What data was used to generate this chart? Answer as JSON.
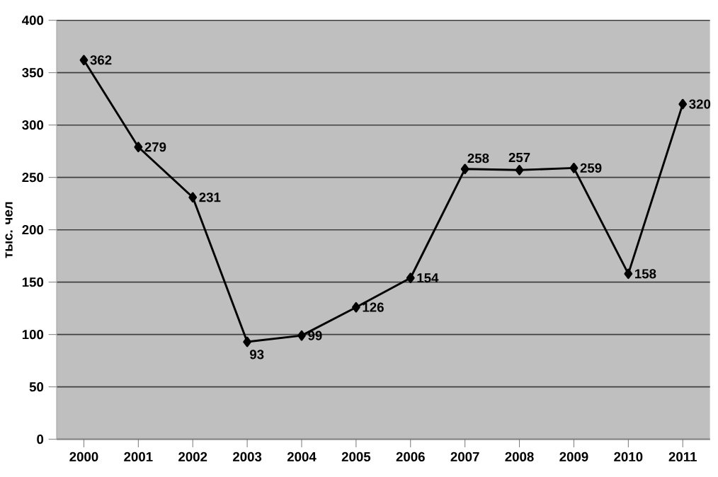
{
  "chart_data": {
    "type": "line",
    "ylabel": "тыс. чел",
    "categories": [
      "2000",
      "2001",
      "2002",
      "2003",
      "2004",
      "2005",
      "2006",
      "2007",
      "2008",
      "2009",
      "2010",
      "2011"
    ],
    "series": [
      {
        "color": "#000000",
        "values": [
          362,
          279,
          231,
          93,
          99,
          126,
          154,
          258,
          257,
          259,
          158,
          320
        ]
      }
    ],
    "ylim": [
      0,
      400
    ],
    "yticks": [
      0,
      50,
      100,
      150,
      200,
      250,
      300,
      350,
      400
    ],
    "grid": "y",
    "marker": "diamond",
    "line_style": "solid",
    "data_labels": true
  }
}
